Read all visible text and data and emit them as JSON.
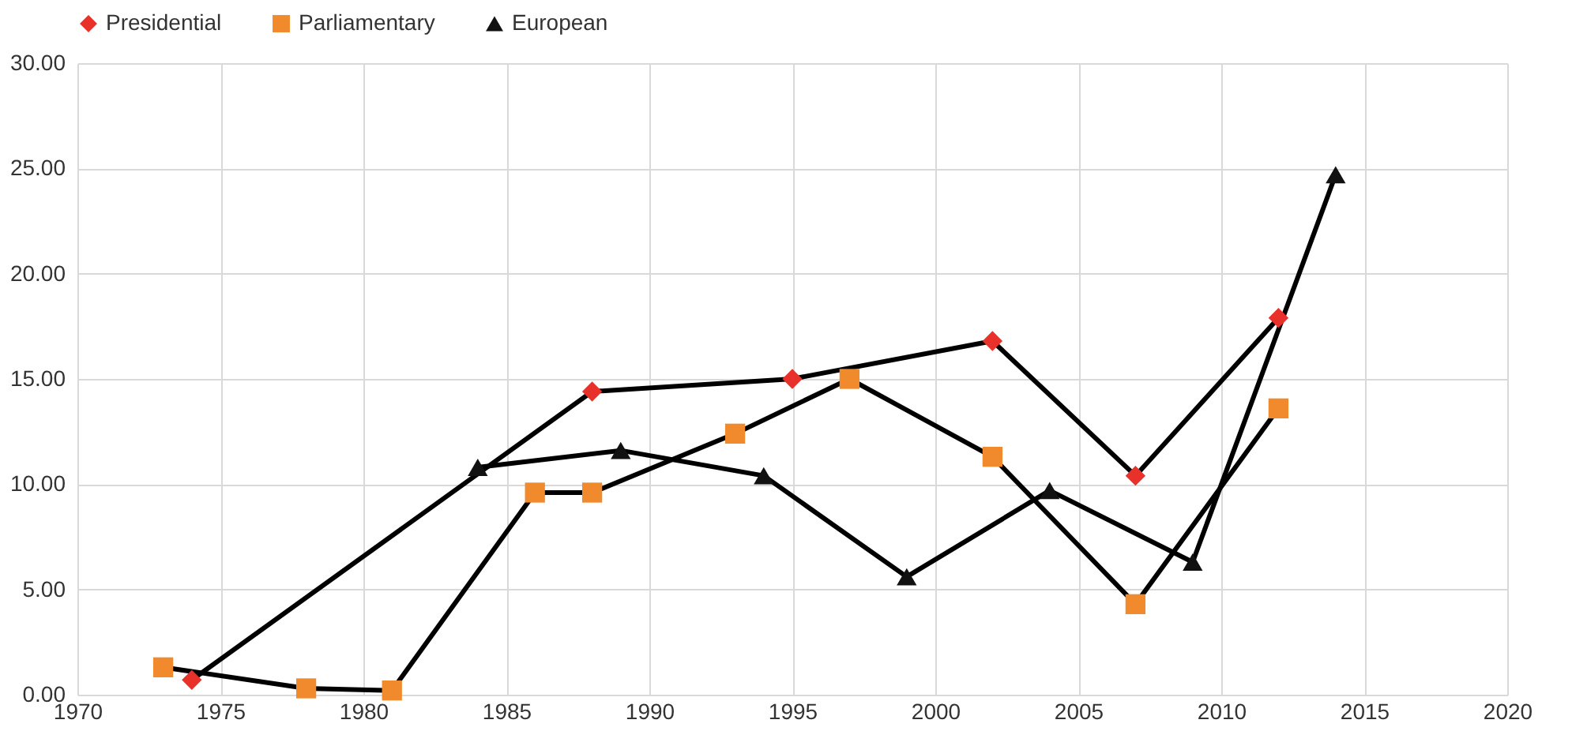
{
  "chart_data": {
    "type": "line",
    "xlim": [
      1970,
      2020
    ],
    "xticks": [
      1970,
      1975,
      1980,
      1985,
      1990,
      1995,
      2000,
      2005,
      2010,
      2015,
      2020
    ],
    "ylim": [
      0,
      30
    ],
    "yticks": [
      {
        "value": 0,
        "label": "0.00"
      },
      {
        "value": 5,
        "label": "5.00"
      },
      {
        "value": 10,
        "label": "10.00"
      },
      {
        "value": 15,
        "label": "15.00"
      },
      {
        "value": 20,
        "label": "20.00"
      },
      {
        "value": 25,
        "label": "25.00"
      },
      {
        "value": 30,
        "label": "30.00"
      }
    ],
    "grid": true,
    "legend": "top",
    "series": [
      {
        "name": "Presidential",
        "color": "#e8312a",
        "marker": "diamond",
        "x": [
          1974,
          1988,
          1995,
          2002,
          2007,
          2012
        ],
        "values": [
          0.7,
          14.4,
          15.0,
          16.8,
          10.4,
          17.9
        ]
      },
      {
        "name": "Parliamentary",
        "color": "#f08a2c",
        "marker": "square",
        "x": [
          1973,
          1978,
          1981,
          1986,
          1988,
          1993,
          1997,
          2002,
          2007,
          2012
        ],
        "values": [
          1.3,
          0.3,
          0.2,
          9.6,
          9.6,
          12.4,
          15.0,
          11.3,
          4.3,
          13.6
        ]
      },
      {
        "name": "European",
        "color": "#111111",
        "marker": "triangle",
        "x": [
          1984,
          1989,
          1994,
          1999,
          2004,
          2009,
          2014
        ],
        "values": [
          10.8,
          11.6,
          10.4,
          5.6,
          9.7,
          6.3,
          24.7
        ]
      }
    ]
  }
}
